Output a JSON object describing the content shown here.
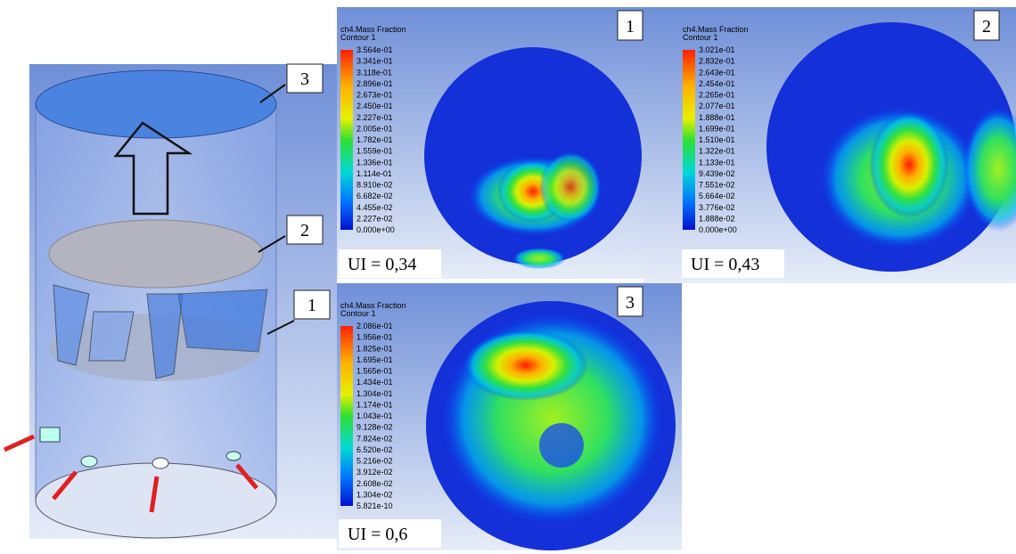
{
  "figure": {
    "cylinder_labels": [
      "3",
      "2",
      "1"
    ],
    "panels": [
      {
        "number": "1",
        "title": "ch4.Mass Fraction",
        "subtitle": "Contour 1",
        "scale": [
          "3.564e-01",
          "3.341e-01",
          "3.118e-01",
          "2.896e-01",
          "2.673e-01",
          "2.450e-01",
          "2.227e-01",
          "2.005e-01",
          "1.782e-01",
          "1.559e-01",
          "1.336e-01",
          "1.114e-01",
          "8.910e-02",
          "6.682e-02",
          "4.455e-02",
          "2.227e-02",
          "0.000e+00"
        ],
        "ui": "UI = 0,34"
      },
      {
        "number": "2",
        "title": "ch4.Mass Fraction",
        "subtitle": "Contour 1",
        "scale": [
          "3.021e-01",
          "2.832e-01",
          "2.643e-01",
          "2.454e-01",
          "2.265e-01",
          "2.077e-01",
          "1.888e-01",
          "1.699e-01",
          "1.510e-01",
          "1.322e-01",
          "1.133e-01",
          "9.439e-02",
          "7.551e-02",
          "5.664e-02",
          "3.776e-02",
          "1.888e-02",
          "0.000e+00"
        ],
        "ui": "UI = 0,43"
      },
      {
        "number": "3",
        "title": "ch4.Mass Fraction",
        "subtitle": "Contour 1",
        "scale": [
          "2.086e-01",
          "1.956e-01",
          "1.825e-01",
          "1.695e-01",
          "1.565e-01",
          "1.434e-01",
          "1.304e-01",
          "1.174e-01",
          "1.043e-01",
          "9.128e-02",
          "7.824e-02",
          "6.520e-02",
          "5.216e-02",
          "3.912e-02",
          "2.608e-02",
          "1.304e-02",
          "5.821e-10"
        ],
        "ui": "UI = 0,6"
      }
    ]
  }
}
